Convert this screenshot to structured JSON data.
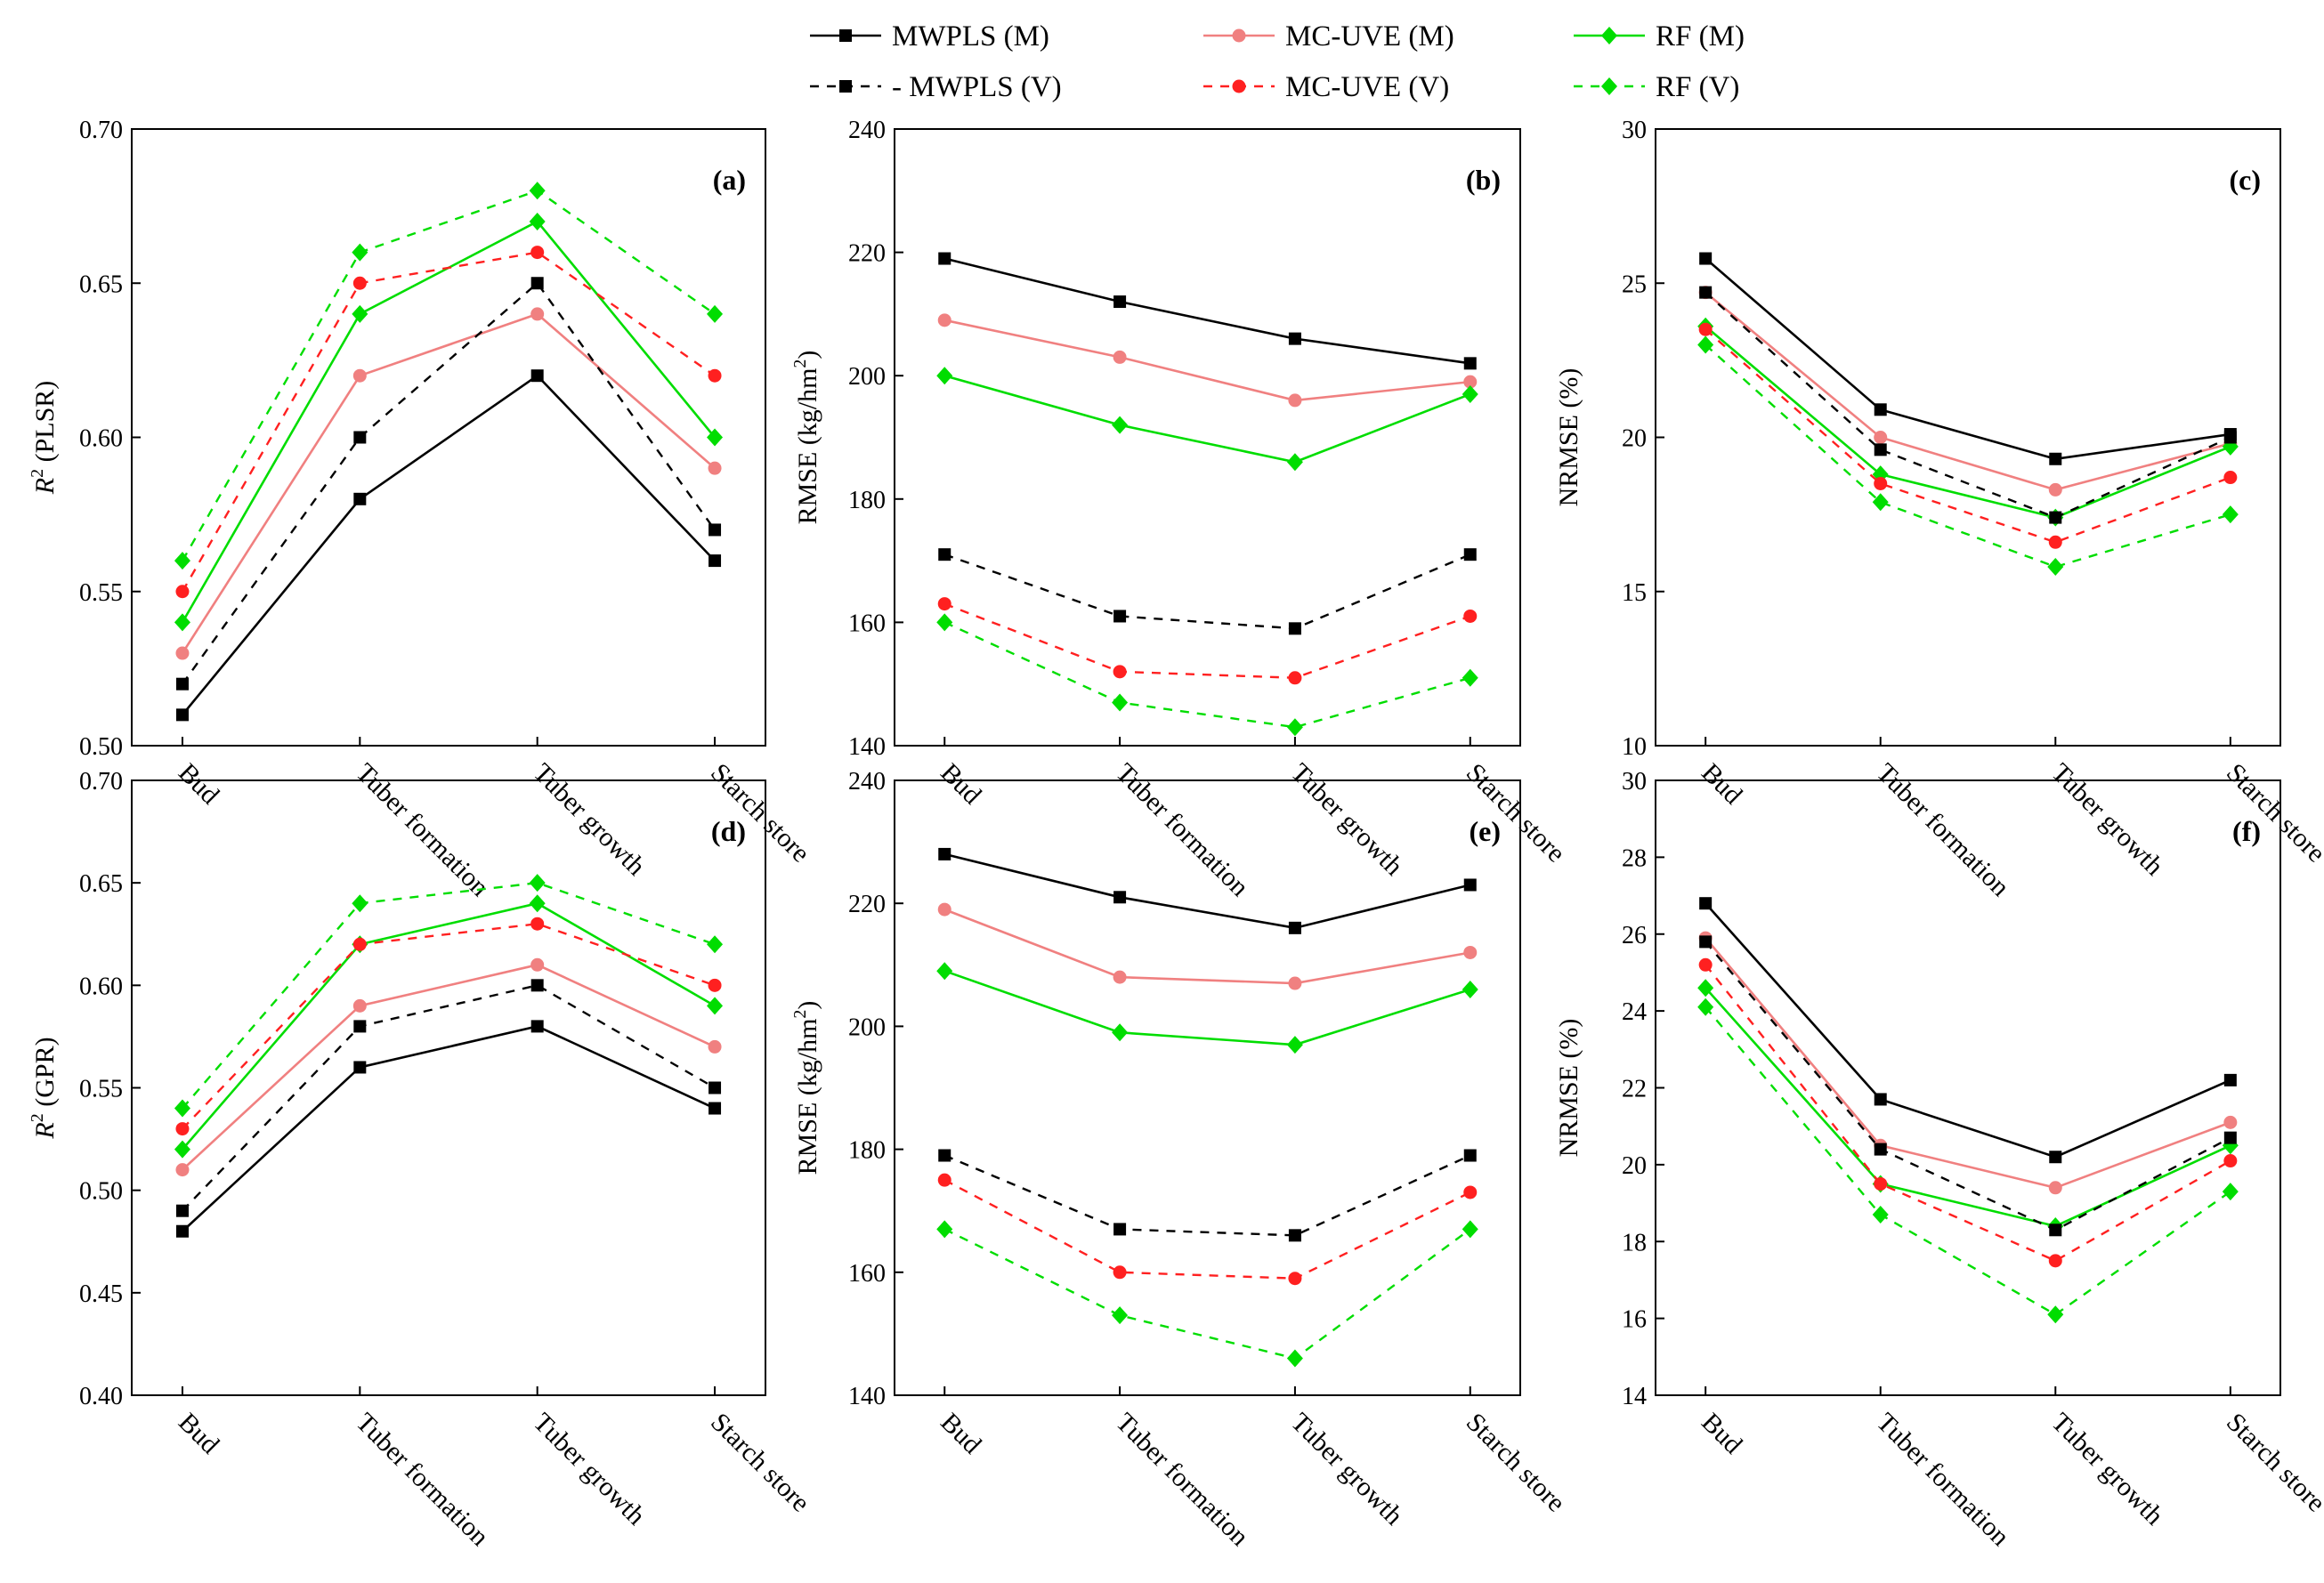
{
  "legend": {
    "entries": [
      {
        "label": "MWPLS (M)",
        "color": "#000000",
        "dashed": false,
        "marker": "square"
      },
      {
        "label": "MC-UVE (M)",
        "color": "#f08080",
        "dashed": false,
        "marker": "circle"
      },
      {
        "label": "RF (M)",
        "color": "#00dd00",
        "dashed": false,
        "marker": "diamond"
      },
      {
        "label": "- MWPLS (V)",
        "color": "#000000",
        "dashed": true,
        "marker": "square"
      },
      {
        "label": "MC-UVE (V)",
        "color": "#ff2020",
        "dashed": true,
        "marker": "circle"
      },
      {
        "label": "RF (V)",
        "color": "#00dd00",
        "dashed": true,
        "marker": "diamond"
      }
    ]
  },
  "chart_data": [
    {
      "type": "line",
      "panel_label": "(a)",
      "xlabel": "",
      "ylabel": "R2 (PLSR)",
      "ylabel_base": "R",
      "ylabel_sup": "2",
      "ylabel_rest": " (PLSR)",
      "categories": [
        "Bud",
        "Tuber formation",
        "Tuber growth",
        "Starch store"
      ],
      "ylim": [
        0.5,
        0.7
      ],
      "yticks": [
        "0.50",
        "0.55",
        "0.60",
        "0.65",
        "0.70"
      ],
      "ytick_values": [
        0.5,
        0.55,
        0.6,
        0.65,
        0.7
      ],
      "series": [
        {
          "name": "MWPLS (M)",
          "values": [
            0.51,
            0.58,
            0.62,
            0.56
          ]
        },
        {
          "name": "MC-UVE (M)",
          "values": [
            0.53,
            0.62,
            0.64,
            0.59
          ]
        },
        {
          "name": "RF (M)",
          "values": [
            0.54,
            0.64,
            0.67,
            0.6
          ]
        },
        {
          "name": "MWPLS (V)",
          "values": [
            0.52,
            0.6,
            0.65,
            0.57
          ]
        },
        {
          "name": "MC-UVE (V)",
          "values": [
            0.55,
            0.65,
            0.66,
            0.62
          ]
        },
        {
          "name": "RF (V)",
          "values": [
            0.56,
            0.66,
            0.68,
            0.64
          ]
        }
      ]
    },
    {
      "type": "line",
      "panel_label": "(b)",
      "xlabel": "",
      "ylabel": "RMSE (kg/hm2)",
      "ylabel_base": "RMSE (kg/hm",
      "ylabel_sup": "2",
      "ylabel_rest": ")",
      "categories": [
        "Bud",
        "Tuber formation",
        "Tuber growth",
        "Starch store"
      ],
      "ylim": [
        140,
        240
      ],
      "yticks": [
        "140",
        "160",
        "180",
        "200",
        "220",
        "240"
      ],
      "ytick_values": [
        140,
        160,
        180,
        200,
        220,
        240
      ],
      "series": [
        {
          "name": "MWPLS (M)",
          "values": [
            219,
            212,
            206,
            202
          ]
        },
        {
          "name": "MC-UVE (M)",
          "values": [
            209,
            203,
            196,
            199
          ]
        },
        {
          "name": "RF (M)",
          "values": [
            200,
            192,
            186,
            197
          ]
        },
        {
          "name": "MWPLS (V)",
          "values": [
            171,
            161,
            159,
            171
          ]
        },
        {
          "name": "MC-UVE (V)",
          "values": [
            163,
            152,
            151,
            161
          ]
        },
        {
          "name": "RF (V)",
          "values": [
            160,
            147,
            143,
            151
          ]
        }
      ]
    },
    {
      "type": "line",
      "panel_label": "(c)",
      "xlabel": "",
      "ylabel": "NRMSE (%)",
      "ylabel_base": "NRMSE (%)",
      "ylabel_sup": "",
      "ylabel_rest": "",
      "categories": [
        "Bud",
        "Tuber formation",
        "Tuber growth",
        "Starch store"
      ],
      "ylim": [
        10,
        30
      ],
      "yticks": [
        "10",
        "15",
        "20",
        "25",
        "30"
      ],
      "ytick_values": [
        10,
        15,
        20,
        25,
        30
      ],
      "series": [
        {
          "name": "MWPLS (M)",
          "values": [
            25.8,
            20.9,
            19.3,
            20.1
          ]
        },
        {
          "name": "MC-UVE (M)",
          "values": [
            24.7,
            20.0,
            18.3,
            19.8
          ]
        },
        {
          "name": "RF (M)",
          "values": [
            23.6,
            18.8,
            17.4,
            19.7
          ]
        },
        {
          "name": "MWPLS (V)",
          "values": [
            24.7,
            19.6,
            17.4,
            20.0
          ]
        },
        {
          "name": "MC-UVE (V)",
          "values": [
            23.5,
            18.5,
            16.6,
            18.7
          ]
        },
        {
          "name": "RF (V)",
          "values": [
            23.0,
            17.9,
            15.8,
            17.5
          ]
        }
      ]
    },
    {
      "type": "line",
      "panel_label": "(d)",
      "xlabel": "",
      "ylabel": "R2 (GPR)",
      "ylabel_base": "R",
      "ylabel_sup": "2",
      "ylabel_rest": " (GPR)",
      "categories": [
        "Bud",
        "Tuber formation",
        "Tuber growth",
        "Starch store"
      ],
      "ylim": [
        0.4,
        0.7
      ],
      "yticks": [
        "0.40",
        "0.45",
        "0.50",
        "0.55",
        "0.60",
        "0.65",
        "0.70"
      ],
      "ytick_values": [
        0.4,
        0.45,
        0.5,
        0.55,
        0.6,
        0.65,
        0.7
      ],
      "series": [
        {
          "name": "MWPLS (M)",
          "values": [
            0.48,
            0.56,
            0.58,
            0.54
          ]
        },
        {
          "name": "MC-UVE (M)",
          "values": [
            0.51,
            0.59,
            0.61,
            0.57
          ]
        },
        {
          "name": "RF (M)",
          "values": [
            0.52,
            0.62,
            0.64,
            0.59
          ]
        },
        {
          "name": "MWPLS (V)",
          "values": [
            0.49,
            0.58,
            0.6,
            0.55
          ]
        },
        {
          "name": "MC-UVE (V)",
          "values": [
            0.53,
            0.62,
            0.63,
            0.6
          ]
        },
        {
          "name": "RF (V)",
          "values": [
            0.54,
            0.64,
            0.65,
            0.62
          ]
        }
      ]
    },
    {
      "type": "line",
      "panel_label": "(e)",
      "xlabel": "",
      "ylabel": "RMSE (kg/hm2)",
      "ylabel_base": "RMSE (kg/hm",
      "ylabel_sup": "2",
      "ylabel_rest": ")",
      "categories": [
        "Bud",
        "Tuber formation",
        "Tuber growth",
        "Starch store"
      ],
      "ylim": [
        140,
        240
      ],
      "yticks": [
        "140",
        "160",
        "180",
        "200",
        "220",
        "240"
      ],
      "ytick_values": [
        140,
        160,
        180,
        200,
        220,
        240
      ],
      "series": [
        {
          "name": "MWPLS (M)",
          "values": [
            228,
            221,
            216,
            223
          ]
        },
        {
          "name": "MC-UVE (M)",
          "values": [
            219,
            208,
            207,
            212
          ]
        },
        {
          "name": "RF (M)",
          "values": [
            209,
            199,
            197,
            206
          ]
        },
        {
          "name": "MWPLS (V)",
          "values": [
            179,
            167,
            166,
            179
          ]
        },
        {
          "name": "MC-UVE (V)",
          "values": [
            175,
            160,
            159,
            173
          ]
        },
        {
          "name": "RF (V)",
          "values": [
            167,
            153,
            146,
            167
          ]
        }
      ]
    },
    {
      "type": "line",
      "panel_label": "(f)",
      "xlabel": "",
      "ylabel": "NRMSE (%)",
      "ylabel_base": "NRMSE (%)",
      "ylabel_sup": "",
      "ylabel_rest": "",
      "categories": [
        "Bud",
        "Tuber formation",
        "Tuber growth",
        "Starch store"
      ],
      "ylim": [
        14,
        30
      ],
      "yticks": [
        "14",
        "16",
        "18",
        "20",
        "22",
        "24",
        "26",
        "28",
        "30"
      ],
      "ytick_values": [
        14,
        16,
        18,
        20,
        22,
        24,
        26,
        28,
        30
      ],
      "series": [
        {
          "name": "MWPLS (M)",
          "values": [
            26.8,
            21.7,
            20.2,
            22.2
          ]
        },
        {
          "name": "MC-UVE (M)",
          "values": [
            25.9,
            20.5,
            19.4,
            21.1
          ]
        },
        {
          "name": "RF (M)",
          "values": [
            24.6,
            19.5,
            18.4,
            20.5
          ]
        },
        {
          "name": "MWPLS (V)",
          "values": [
            25.8,
            20.4,
            18.3,
            20.7
          ]
        },
        {
          "name": "MC-UVE (V)",
          "values": [
            25.2,
            19.5,
            17.5,
            20.1
          ]
        },
        {
          "name": "RF (V)",
          "values": [
            24.1,
            18.7,
            16.1,
            19.3
          ]
        }
      ]
    }
  ]
}
